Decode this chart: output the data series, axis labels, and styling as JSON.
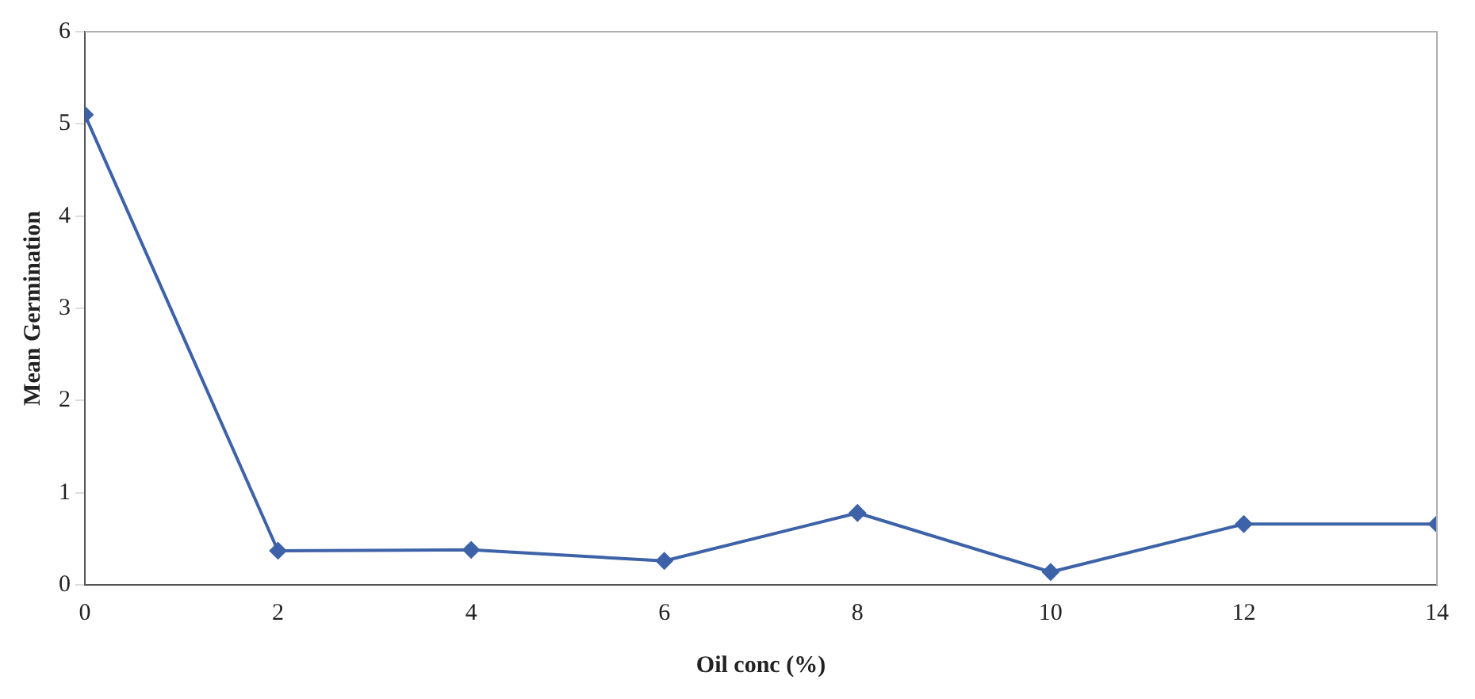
{
  "chart_data": {
    "type": "line",
    "xlabel": "Oil conc (%)",
    "ylabel": "Mean Germination",
    "x": [
      0,
      2,
      4,
      6,
      8,
      10,
      12,
      14
    ],
    "series": [
      {
        "color": "#3d62a8",
        "values": [
          5.1,
          0.37,
          0.38,
          0.26,
          0.78,
          0.14,
          0.66,
          0.66
        ]
      }
    ],
    "xlim": [
      0,
      14
    ],
    "xticks": [
      0,
      2,
      4,
      6,
      8,
      10,
      12,
      14
    ],
    "ylim": [
      0,
      6
    ],
    "yticks": [
      0,
      1,
      2,
      3,
      4,
      5,
      6
    ],
    "grid": false,
    "legend": false,
    "marker": "diamond",
    "line_style": "solid"
  }
}
